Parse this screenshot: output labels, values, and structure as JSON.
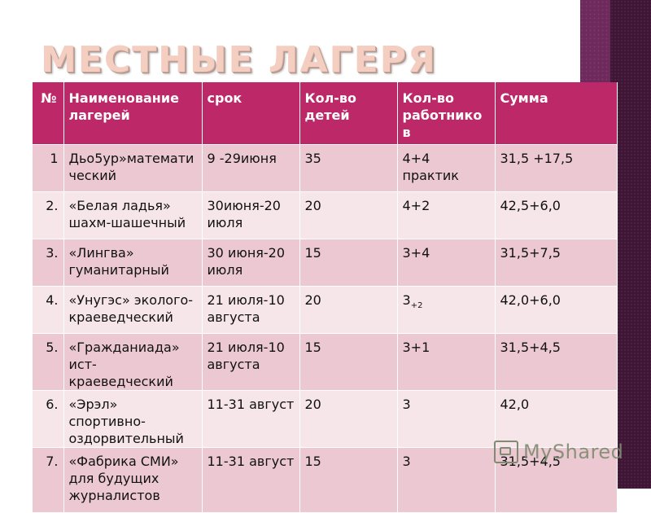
{
  "slide": {
    "title": "МЕСТНЫЕ ЛАГЕРЯ"
  },
  "table": {
    "headers": [
      "№",
      "Наименование лагерей",
      "срок",
      "Кол-во детей",
      "Кол-во работнико в",
      "Сумма"
    ],
    "rows": [
      [
        "1",
        "Дьо5ур»математи ческий",
        "9 -29июня",
        "35",
        "4+4 практик",
        "31,5 +17,5"
      ],
      [
        "2.",
        "«Белая ладья» шахм-шашечный",
        "30июня-20 июля",
        "20",
        "4+2",
        "42,5+6,0"
      ],
      [
        "3.",
        "«Лингва» гуманитарный",
        "30 июня-20 июля",
        "15",
        "3+4",
        "31,5+7,5"
      ],
      [
        "4.",
        "«Унугэс» эколого-краеведческий",
        "21 июля-10 августа",
        "20",
        "3",
        "42,0+6,0"
      ],
      [
        "5.",
        "«Гражданиада» ист-краеведческий",
        "21 июля-10 августа",
        "15",
        "3+1",
        "31,5+4,5"
      ],
      [
        "6.",
        "«Эрэл» спортивно-оздорвительный",
        "11-31 август",
        "20",
        "3",
        "42,0"
      ],
      [
        "7.",
        "«Фабрика СМИ» для будущих журналистов",
        "11-31 август",
        "15",
        "3",
        "31,5+4,5"
      ]
    ],
    "row4_staff_subscript": "+2"
  },
  "watermark": {
    "text": "MyShared",
    "icon": "monitor-icon"
  },
  "colors": {
    "header_bg": "#bd2868",
    "row_odd": "#ecc9d2",
    "row_even": "#f6e5e9",
    "title": "#f4cfc1",
    "side_bar": "#6e2a5d"
  }
}
